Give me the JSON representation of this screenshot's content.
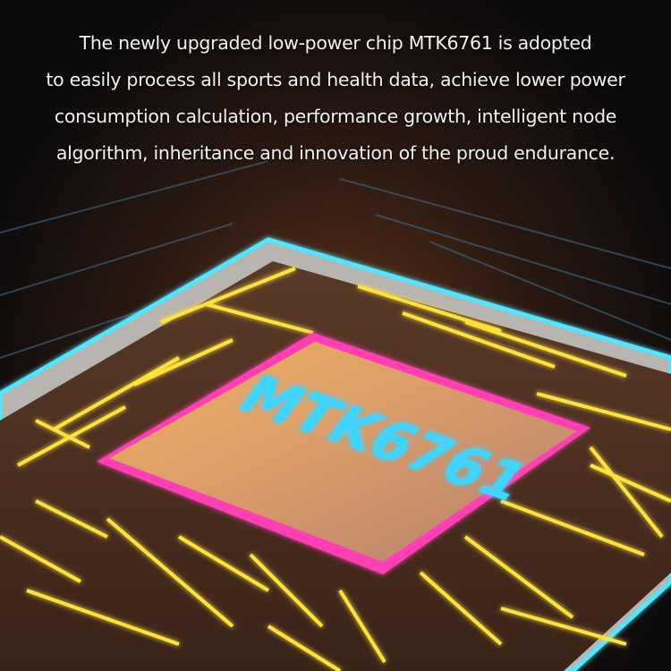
{
  "caption": {
    "lines": [
      "The newly upgraded low-power chip MTK6761 is adopted",
      "to easily process all sports and health data, achieve lower power",
      "consumption calculation, performance growth, intelligent node",
      "algorithm, inheritance and innovation of the proud endurance."
    ]
  },
  "chip": {
    "label": "MTK6761",
    "label_color": "#3fd4ff",
    "border_color": "#ff3fb4",
    "trace_color": "#ffe23a",
    "frame_color": "#4fe6ff"
  }
}
